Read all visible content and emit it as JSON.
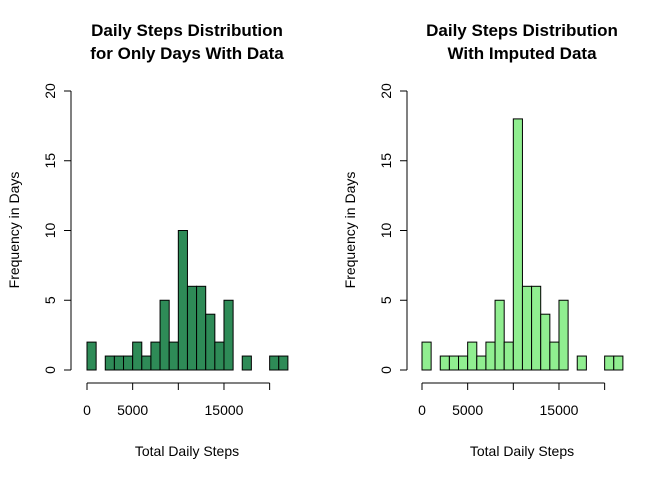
{
  "chart_data": [
    {
      "type": "bar",
      "title_lines": [
        "Daily Steps Distribution",
        "for Only Days With Data"
      ],
      "xlabel": "Total Daily Steps",
      "ylabel": "Frequency in Days",
      "bar_color": "#2e8b57",
      "xlim": [
        0,
        22500
      ],
      "ylim": [
        0,
        20
      ],
      "bin_width": 1000,
      "bin_start": 0,
      "values": [
        2,
        0,
        1,
        1,
        1,
        2,
        1,
        2,
        5,
        2,
        10,
        6,
        6,
        4,
        2,
        5,
        0,
        1,
        0,
        0,
        1,
        1
      ],
      "x_ticks": [
        0,
        5000,
        10000,
        15000,
        20000
      ],
      "x_tick_labels": [
        "0",
        "5000",
        "",
        "15000",
        ""
      ],
      "y_ticks": [
        0,
        5,
        10,
        15,
        20
      ],
      "y_tick_labels": [
        "0",
        "5",
        "10",
        "15",
        "20"
      ]
    },
    {
      "type": "bar",
      "title_lines": [
        "Daily Steps Distribution",
        "With Imputed Data"
      ],
      "xlabel": "Total Daily Steps",
      "ylabel": "Frequency in Days",
      "bar_color": "#90ee90",
      "xlim": [
        0,
        22500
      ],
      "ylim": [
        0,
        20
      ],
      "bin_width": 1000,
      "bin_start": 0,
      "values": [
        2,
        0,
        1,
        1,
        1,
        2,
        1,
        2,
        5,
        2,
        18,
        6,
        6,
        4,
        2,
        5,
        0,
        1,
        0,
        0,
        1,
        1
      ],
      "x_ticks": [
        0,
        5000,
        10000,
        15000,
        20000
      ],
      "x_tick_labels": [
        "0",
        "5000",
        "",
        "15000",
        ""
      ],
      "y_ticks": [
        0,
        5,
        10,
        15,
        20
      ],
      "y_tick_labels": [
        "0",
        "5",
        "10",
        "15",
        "20"
      ]
    }
  ]
}
